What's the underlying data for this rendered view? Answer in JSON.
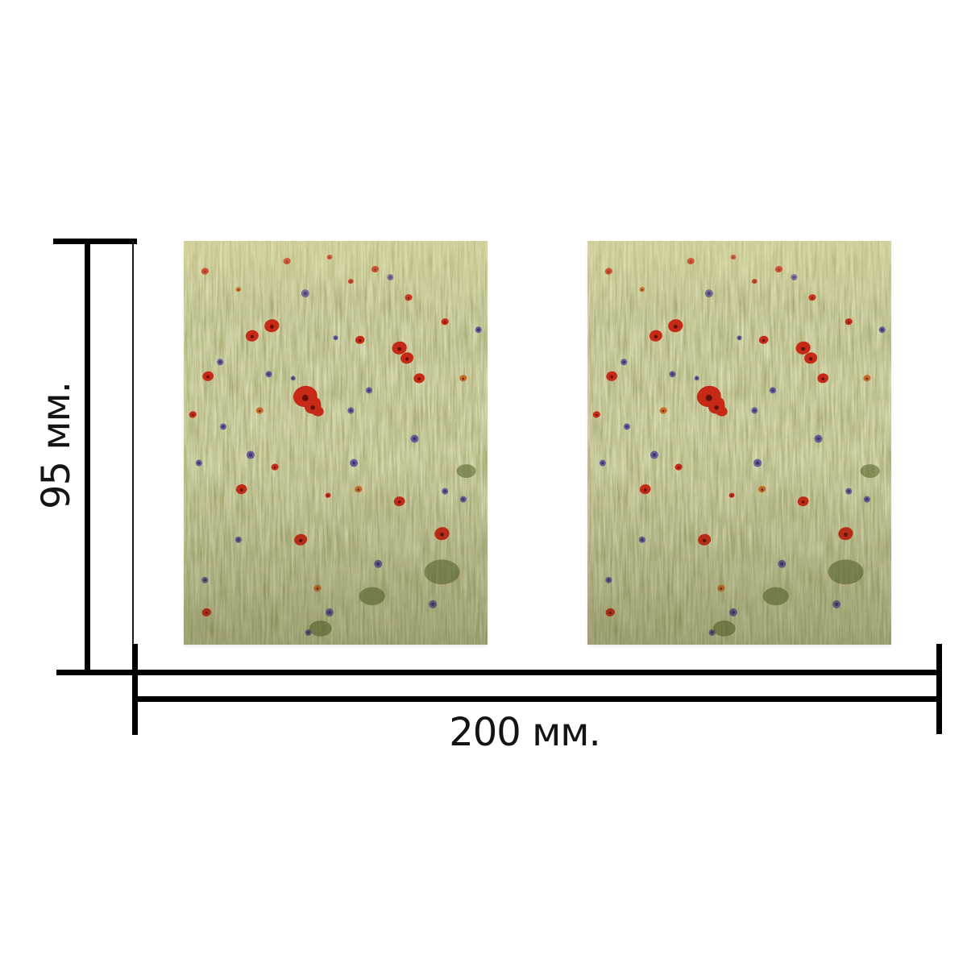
{
  "canvas": {
    "background": "#ffffff",
    "line_color": "#000000",
    "text_color": "#141414"
  },
  "dimensions": {
    "height_label": "95 мм.",
    "width_label": "200 мм."
  },
  "photo": {
    "description": "green wheat field dotted with red poppies and purple cornflowers, two identical copies",
    "palette": {
      "base_dark": "#50521f",
      "base_mid": "#919454",
      "base_light": "#d3d593",
      "shade_olive": "#3c3e14",
      "top_haze": "#e6e1a0",
      "poppy_red": "#c62a17",
      "poppy_dark": "#5f100a",
      "poppy_orange": "#c66a28",
      "cornflower_purple": "#5d5096",
      "cornflower_dark": "#3f3570",
      "foliage_green": "#4e5e22"
    },
    "poppies": [
      [
        29,
        21,
        8
      ],
      [
        22.5,
        23.5,
        7
      ],
      [
        40,
        38.5,
        13
      ],
      [
        42.5,
        41,
        9
      ],
      [
        71,
        26.5,
        8
      ],
      [
        73.5,
        29,
        7
      ],
      [
        58,
        24.5,
        5
      ],
      [
        77.5,
        34,
        6
      ],
      [
        8,
        33.5,
        6
      ],
      [
        25,
        42,
        4,
        "o"
      ],
      [
        19,
        61.5,
        6
      ],
      [
        30,
        56,
        4
      ],
      [
        38.5,
        74,
        7
      ],
      [
        71,
        64.5,
        6
      ],
      [
        85,
        72.5,
        8
      ],
      [
        57.5,
        61.5,
        4,
        "o"
      ],
      [
        47.5,
        63,
        3
      ],
      [
        7.5,
        92,
        5
      ],
      [
        7,
        7.5,
        4
      ],
      [
        34,
        5,
        4
      ],
      [
        48,
        4,
        3
      ],
      [
        63,
        7,
        4
      ],
      [
        74,
        14,
        4
      ],
      [
        86,
        20,
        4
      ],
      [
        92,
        34,
        4,
        "o"
      ],
      [
        3,
        43,
        4
      ],
      [
        55,
        10,
        3
      ],
      [
        18,
        12,
        3,
        "o"
      ],
      [
        44,
        86,
        4,
        "o"
      ]
    ],
    "cornflowers": [
      [
        40,
        13,
        5
      ],
      [
        12,
        30,
        4
      ],
      [
        22,
        53,
        5
      ],
      [
        56,
        55,
        5
      ],
      [
        61,
        37,
        4
      ],
      [
        64,
        80,
        5
      ],
      [
        7,
        84,
        4
      ],
      [
        48,
        92,
        5
      ],
      [
        86,
        62,
        4
      ],
      [
        13,
        46,
        4
      ],
      [
        28,
        33,
        4
      ],
      [
        55,
        42,
        4
      ],
      [
        76,
        49,
        5
      ],
      [
        36,
        34,
        3
      ],
      [
        82,
        90,
        5
      ],
      [
        18,
        74,
        4
      ],
      [
        92,
        64,
        4
      ],
      [
        41,
        97,
        4
      ],
      [
        68,
        9,
        4
      ],
      [
        97,
        22,
        4
      ],
      [
        50,
        24,
        3
      ],
      [
        5,
        55,
        4
      ]
    ],
    "foliage": [
      [
        85,
        82,
        22
      ],
      [
        62,
        88,
        16
      ],
      [
        45,
        96,
        14
      ],
      [
        93,
        57,
        12
      ]
    ]
  }
}
